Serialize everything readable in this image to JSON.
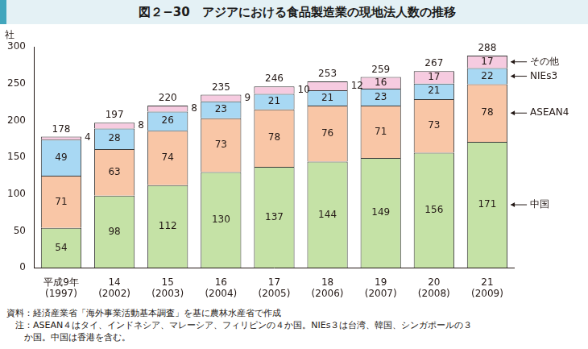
{
  "chart_data": {
    "type": "bar",
    "title": "図２−30　アジアにおける食品製造業の現地法人数の推移",
    "y_label": "社",
    "categories": [
      [
        "平成9年",
        "(1997)"
      ],
      [
        "14",
        "(2002)"
      ],
      [
        "15",
        "(2003)"
      ],
      [
        "16",
        "(2004)"
      ],
      [
        "17",
        "(2005)"
      ],
      [
        "18",
        "(2006)"
      ],
      [
        "19",
        "(2007)"
      ],
      [
        "20",
        "(2008)"
      ],
      [
        "21",
        "(2009)"
      ]
    ],
    "series": [
      {
        "name": "中国",
        "color": "#c5e2a6",
        "values": [
          54,
          98,
          112,
          130,
          137,
          144,
          149,
          156,
          171
        ]
      },
      {
        "name": "ASEAN4",
        "color": "#f9c6a6",
        "values": [
          71,
          63,
          74,
          73,
          78,
          76,
          71,
          73,
          78
        ]
      },
      {
        "name": "NIEs3",
        "color": "#a8d8f3",
        "values": [
          49,
          28,
          26,
          23,
          21,
          21,
          23,
          21,
          22
        ]
      },
      {
        "name": "その他",
        "color": "#f6cbe0",
        "values": [
          4,
          8,
          8,
          9,
          10,
          12,
          16,
          17,
          17
        ]
      }
    ],
    "totals": [
      178,
      197,
      220,
      235,
      246,
      253,
      259,
      267,
      288
    ],
    "ylim": [
      0,
      300
    ],
    "yticks": [
      0,
      50,
      100,
      150,
      200,
      250,
      300
    ],
    "stacked": true,
    "grid": false,
    "data_labels": true,
    "legend": "right",
    "notes": [
      "資料：経済産業省「海外事業活動基本調査」を基に農林水産省で作成",
      "　注：ASEAN４はタイ、インドネシア、マレーシア、フィリピンの４か国。NIEs３は台湾、韓国、シンガポールの３",
      "　　か国。中国は香港を含む。"
    ]
  }
}
